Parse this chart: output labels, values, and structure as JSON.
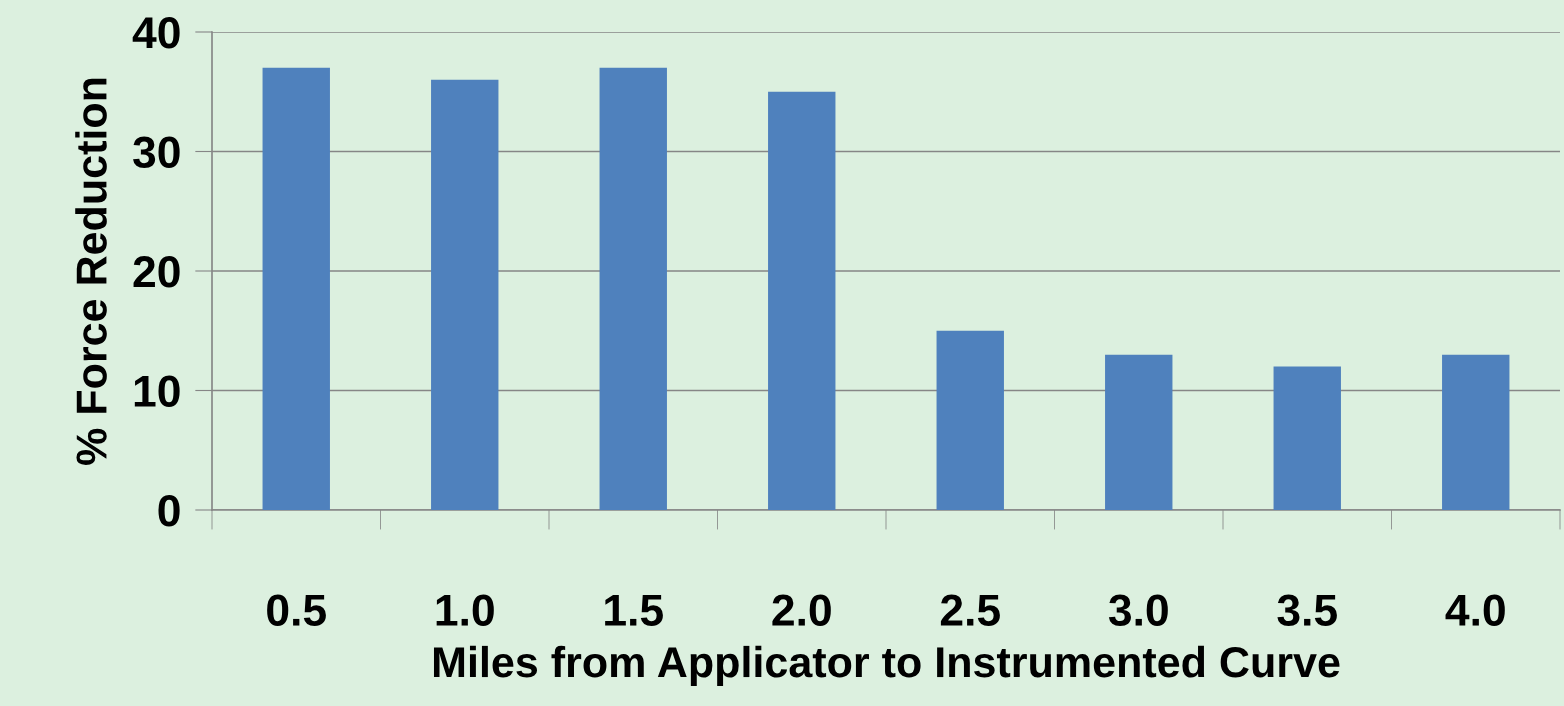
{
  "chart_data": {
    "type": "bar",
    "xlabel": "Miles from Applicator to Instrumented Curve",
    "ylabel": "% Force Reduction",
    "categories": [
      "0.5",
      "1.0",
      "1.5",
      "2.0",
      "2.5",
      "3.0",
      "3.5",
      "4.0"
    ],
    "values": [
      37,
      36,
      37,
      35,
      15,
      13,
      12,
      13
    ],
    "color": "#4f81bd",
    "ylim": [
      0,
      40
    ],
    "yticks": [
      0,
      10,
      20,
      30,
      40
    ],
    "grid": "y",
    "legend": false
  }
}
